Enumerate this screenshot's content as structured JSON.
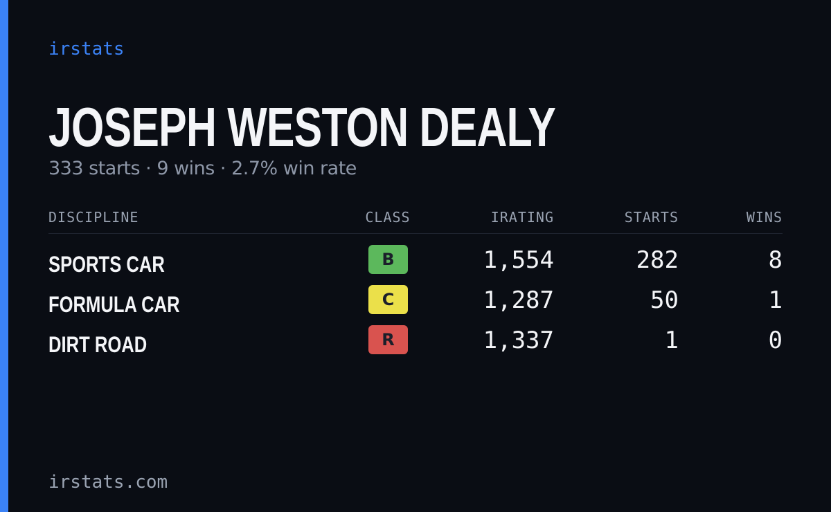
{
  "brand": "irstats",
  "header": {
    "name": "JOSEPH WESTON DEALY",
    "summary": "333 starts · 9 wins · 2.7% win rate"
  },
  "table": {
    "columns": [
      "DISCIPLINE",
      "CLASS",
      "IRATING",
      "STARTS",
      "WINS"
    ],
    "rows": [
      {
        "discipline": "SPORTS CAR",
        "class": "B",
        "class_color": "#5cb85c",
        "irating": "1,554",
        "starts": "282",
        "wins": "8"
      },
      {
        "discipline": "FORMULA CAR",
        "class": "C",
        "class_color": "#ebe04a",
        "irating": "1,287",
        "starts": "50",
        "wins": "1"
      },
      {
        "discipline": "DIRT ROAD",
        "class": "R",
        "class_color": "#d9534f",
        "irating": "1,337",
        "starts": "1",
        "wins": "0"
      }
    ]
  },
  "footer": "irstats.com"
}
